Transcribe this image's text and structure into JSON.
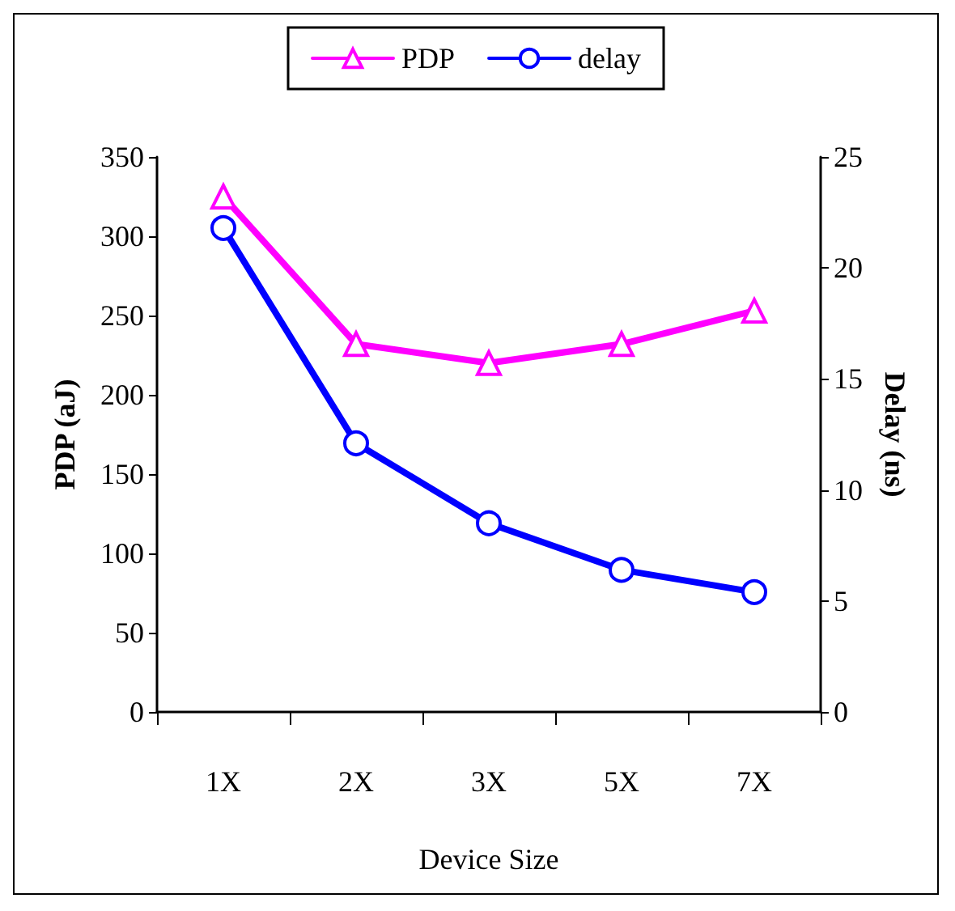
{
  "chart_data": {
    "type": "line",
    "xlabel": "Device Size",
    "ylabel": "PDP (aJ)",
    "y2label": "Delay (ns)",
    "categories": [
      "1X",
      "2X",
      "3X",
      "5X",
      "7X"
    ],
    "series": [
      {
        "name": "PDP",
        "color": "#ff00ff",
        "marker": "triangle",
        "values": [
          325,
          232,
          220,
          232,
          253
        ]
      },
      {
        "name": "delay",
        "color": "#0000ff",
        "marker": "circle",
        "axis": "y2",
        "values": [
          21.8,
          12.1,
          8.5,
          6.4,
          5.4
        ]
      }
    ],
    "ylim": [
      0,
      350
    ],
    "yticks": [
      0,
      50,
      100,
      150,
      200,
      250,
      300,
      350
    ],
    "y2lim": [
      0,
      25
    ],
    "y2ticks": [
      0,
      5,
      10,
      15,
      20,
      25
    ],
    "legend": "top",
    "grid": false,
    "line_style": "solid"
  }
}
